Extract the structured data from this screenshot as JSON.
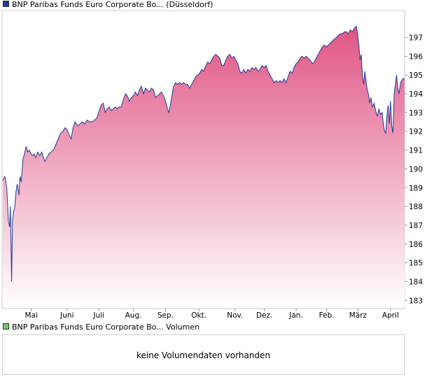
{
  "legend": {
    "price_label": "BNP Paribas Funds Euro Corporate Bo... (Düsseldorf)",
    "price_color": "#1f3a93",
    "volume_label": "BNP Paribas Funds Euro Corporate Bo... Volumen",
    "volume_color": "#66cc66"
  },
  "volume_panel": {
    "message": "keine Volumendaten vorhanden"
  },
  "chart_data": {
    "type": "area",
    "title": "",
    "xlabel": "",
    "ylabel": "",
    "ylim": [
      182.6,
      198.4
    ],
    "yticks": [
      183,
      184,
      185,
      186,
      187,
      188,
      189,
      190,
      191,
      192,
      193,
      194,
      195,
      196,
      197
    ],
    "month_labels": [
      {
        "label": "Mai",
        "t": 0.071
      },
      {
        "label": "Juni",
        "t": 0.16
      },
      {
        "label": "Juli",
        "t": 0.239
      },
      {
        "label": "Aug.",
        "t": 0.325
      },
      {
        "label": "Sep.",
        "t": 0.405
      },
      {
        "label": "Okt.",
        "t": 0.488
      },
      {
        "label": "Nov.",
        "t": 0.578
      },
      {
        "label": "Dez.",
        "t": 0.651
      },
      {
        "label": "Jan.",
        "t": 0.73
      },
      {
        "label": "Feb.",
        "t": 0.806
      },
      {
        "label": "März",
        "t": 0.884
      },
      {
        "label": "April",
        "t": 0.965
      }
    ],
    "grid": false,
    "line_color": "#1f3a93",
    "fill_top_color": "#e05585",
    "fill_bottom_color": "#ffffff",
    "series": [
      {
        "points": [
          [
            0.0,
            189.4
          ],
          [
            0.005,
            189.6
          ],
          [
            0.01,
            189.0
          ],
          [
            0.014,
            187.2
          ],
          [
            0.017,
            186.9
          ],
          [
            0.019,
            188.0
          ],
          [
            0.022,
            184.0
          ],
          [
            0.024,
            187.2
          ],
          [
            0.027,
            187.7
          ],
          [
            0.03,
            188.0
          ],
          [
            0.033,
            188.8
          ],
          [
            0.036,
            189.2
          ],
          [
            0.04,
            188.6
          ],
          [
            0.043,
            189.6
          ],
          [
            0.046,
            189.3
          ],
          [
            0.05,
            190.5
          ],
          [
            0.054,
            190.8
          ],
          [
            0.058,
            191.2
          ],
          [
            0.062,
            190.9
          ],
          [
            0.066,
            191.0
          ],
          [
            0.07,
            190.8
          ],
          [
            0.074,
            190.7
          ],
          [
            0.078,
            190.8
          ],
          [
            0.082,
            190.6
          ],
          [
            0.087,
            190.9
          ],
          [
            0.092,
            190.7
          ],
          [
            0.097,
            190.9
          ],
          [
            0.101,
            190.6
          ],
          [
            0.105,
            190.4
          ],
          [
            0.11,
            190.6
          ],
          [
            0.115,
            190.8
          ],
          [
            0.12,
            190.9
          ],
          [
            0.126,
            191.0
          ],
          [
            0.132,
            191.3
          ],
          [
            0.138,
            191.6
          ],
          [
            0.144,
            191.9
          ],
          [
            0.15,
            192.0
          ],
          [
            0.155,
            192.2
          ],
          [
            0.16,
            192.1
          ],
          [
            0.165,
            191.8
          ],
          [
            0.17,
            191.6
          ],
          [
            0.175,
            192.2
          ],
          [
            0.18,
            192.5
          ],
          [
            0.186,
            192.3
          ],
          [
            0.192,
            192.4
          ],
          [
            0.198,
            192.5
          ],
          [
            0.204,
            192.4
          ],
          [
            0.21,
            192.6
          ],
          [
            0.216,
            192.5
          ],
          [
            0.222,
            192.5
          ],
          [
            0.228,
            192.6
          ],
          [
            0.234,
            192.7
          ],
          [
            0.24,
            193.1
          ],
          [
            0.245,
            193.4
          ],
          [
            0.25,
            193.5
          ],
          [
            0.255,
            193.0
          ],
          [
            0.26,
            193.2
          ],
          [
            0.265,
            193.3
          ],
          [
            0.27,
            193.1
          ],
          [
            0.275,
            193.2
          ],
          [
            0.28,
            193.3
          ],
          [
            0.285,
            193.2
          ],
          [
            0.29,
            193.3
          ],
          [
            0.295,
            193.3
          ],
          [
            0.3,
            193.7
          ],
          [
            0.305,
            194.0
          ],
          [
            0.31,
            193.9
          ],
          [
            0.315,
            193.6
          ],
          [
            0.32,
            193.8
          ],
          [
            0.325,
            193.9
          ],
          [
            0.33,
            194.1
          ],
          [
            0.335,
            193.9
          ],
          [
            0.34,
            194.2
          ],
          [
            0.345,
            194.4
          ],
          [
            0.35,
            194.0
          ],
          [
            0.355,
            194.3
          ],
          [
            0.36,
            194.2
          ],
          [
            0.365,
            194.1
          ],
          [
            0.37,
            194.3
          ],
          [
            0.375,
            194.2
          ],
          [
            0.38,
            193.8
          ],
          [
            0.385,
            193.9
          ],
          [
            0.39,
            194.0
          ],
          [
            0.395,
            194.1
          ],
          [
            0.4,
            193.9
          ],
          [
            0.405,
            193.6
          ],
          [
            0.41,
            193.2
          ],
          [
            0.413,
            193.0
          ],
          [
            0.417,
            193.4
          ],
          [
            0.421,
            193.9
          ],
          [
            0.425,
            194.4
          ],
          [
            0.43,
            194.6
          ],
          [
            0.435,
            194.5
          ],
          [
            0.44,
            194.6
          ],
          [
            0.445,
            194.5
          ],
          [
            0.45,
            194.6
          ],
          [
            0.455,
            194.5
          ],
          [
            0.46,
            194.5
          ],
          [
            0.465,
            194.3
          ],
          [
            0.47,
            194.5
          ],
          [
            0.475,
            194.7
          ],
          [
            0.48,
            194.9
          ],
          [
            0.485,
            195.0
          ],
          [
            0.49,
            195.1
          ],
          [
            0.495,
            195.3
          ],
          [
            0.5,
            195.2
          ],
          [
            0.505,
            195.5
          ],
          [
            0.51,
            195.7
          ],
          [
            0.515,
            195.6
          ],
          [
            0.52,
            195.8
          ],
          [
            0.525,
            196.0
          ],
          [
            0.53,
            196.1
          ],
          [
            0.535,
            196.0
          ],
          [
            0.54,
            195.9
          ],
          [
            0.545,
            195.5
          ],
          [
            0.55,
            195.5
          ],
          [
            0.555,
            195.8
          ],
          [
            0.56,
            196.0
          ],
          [
            0.565,
            196.1
          ],
          [
            0.57,
            195.9
          ],
          [
            0.575,
            196.0
          ],
          [
            0.58,
            195.8
          ],
          [
            0.585,
            195.6
          ],
          [
            0.59,
            195.2
          ],
          [
            0.595,
            195.1
          ],
          [
            0.6,
            195.3
          ],
          [
            0.605,
            195.1
          ],
          [
            0.61,
            195.3
          ],
          [
            0.615,
            195.2
          ],
          [
            0.62,
            195.4
          ],
          [
            0.625,
            195.3
          ],
          [
            0.63,
            195.4
          ],
          [
            0.635,
            195.2
          ],
          [
            0.64,
            195.3
          ],
          [
            0.645,
            195.5
          ],
          [
            0.65,
            195.4
          ],
          [
            0.655,
            195.5
          ],
          [
            0.66,
            195.2
          ],
          [
            0.665,
            195.0
          ],
          [
            0.67,
            194.8
          ],
          [
            0.675,
            194.6
          ],
          [
            0.68,
            194.7
          ],
          [
            0.685,
            194.6
          ],
          [
            0.69,
            194.7
          ],
          [
            0.695,
            194.6
          ],
          [
            0.7,
            194.8
          ],
          [
            0.705,
            194.6
          ],
          [
            0.71,
            194.9
          ],
          [
            0.715,
            195.2
          ],
          [
            0.72,
            195.1
          ],
          [
            0.725,
            195.4
          ],
          [
            0.73,
            195.6
          ],
          [
            0.735,
            195.7
          ],
          [
            0.74,
            195.9
          ],
          [
            0.745,
            196.0
          ],
          [
            0.75,
            195.9
          ],
          [
            0.755,
            196.0
          ],
          [
            0.76,
            195.9
          ],
          [
            0.765,
            195.8
          ],
          [
            0.77,
            195.6
          ],
          [
            0.775,
            195.7
          ],
          [
            0.78,
            195.9
          ],
          [
            0.785,
            196.1
          ],
          [
            0.79,
            196.3
          ],
          [
            0.795,
            196.5
          ],
          [
            0.8,
            196.6
          ],
          [
            0.805,
            196.5
          ],
          [
            0.81,
            196.6
          ],
          [
            0.815,
            196.7
          ],
          [
            0.82,
            196.8
          ],
          [
            0.825,
            196.9
          ],
          [
            0.83,
            197.0
          ],
          [
            0.835,
            197.1
          ],
          [
            0.84,
            197.2
          ],
          [
            0.845,
            197.2
          ],
          [
            0.85,
            197.3
          ],
          [
            0.855,
            197.3
          ],
          [
            0.86,
            197.2
          ],
          [
            0.865,
            197.4
          ],
          [
            0.87,
            197.3
          ],
          [
            0.875,
            197.5
          ],
          [
            0.88,
            197.6
          ],
          [
            0.883,
            197.2
          ],
          [
            0.886,
            196.6
          ],
          [
            0.889,
            195.8
          ],
          [
            0.892,
            196.1
          ],
          [
            0.895,
            195.0
          ],
          [
            0.898,
            194.5
          ],
          [
            0.901,
            195.2
          ],
          [
            0.904,
            194.7
          ],
          [
            0.907,
            194.2
          ],
          [
            0.91,
            194.0
          ],
          [
            0.913,
            193.5
          ],
          [
            0.916,
            193.8
          ],
          [
            0.92,
            193.3
          ],
          [
            0.924,
            193.5
          ],
          [
            0.928,
            193.1
          ],
          [
            0.932,
            192.8
          ],
          [
            0.936,
            193.2
          ],
          [
            0.94,
            192.9
          ],
          [
            0.944,
            193.0
          ],
          [
            0.947,
            192.4
          ],
          [
            0.95,
            192.0
          ],
          [
            0.953,
            191.9
          ],
          [
            0.956,
            192.8
          ],
          [
            0.959,
            193.4
          ],
          [
            0.962,
            192.4
          ],
          [
            0.965,
            193.6
          ],
          [
            0.968,
            192.3
          ],
          [
            0.971,
            191.9
          ],
          [
            0.974,
            194.0
          ],
          [
            0.977,
            194.5
          ],
          [
            0.98,
            195.0
          ],
          [
            0.983,
            194.3
          ],
          [
            0.986,
            194.0
          ],
          [
            0.99,
            194.6
          ],
          [
            0.995,
            194.8
          ],
          [
            1.0,
            194.8
          ]
        ]
      }
    ]
  }
}
